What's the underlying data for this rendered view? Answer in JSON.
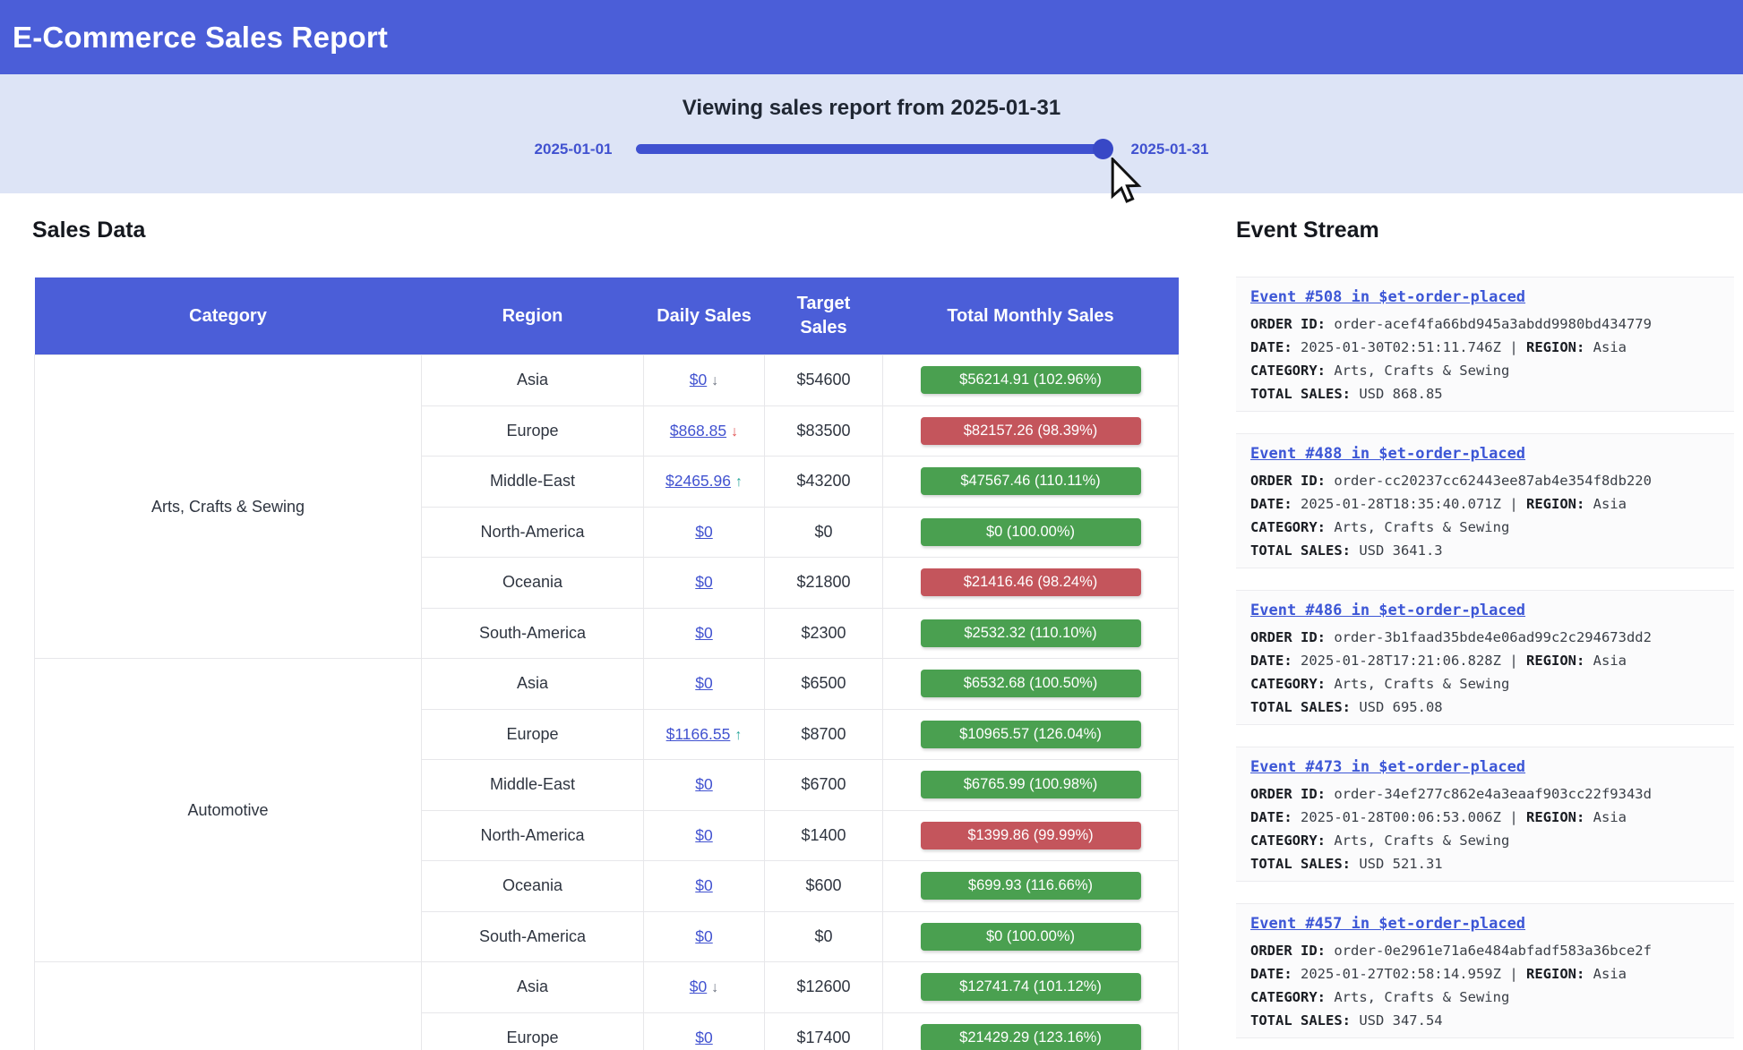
{
  "header": {
    "title": "E-Commerce Sales Report"
  },
  "slider": {
    "title": "Viewing sales report from 2025-01-31",
    "min_label": "2025-01-01",
    "max_label": "2025-01-31",
    "value": "2025-01-31",
    "accent_color": "#3f51d0"
  },
  "sales": {
    "heading": "Sales Data",
    "columns": [
      "Category",
      "Region",
      "Daily Sales",
      "Target Sales",
      "Total Monthly Sales"
    ],
    "groups": [
      {
        "label": "Arts, Crafts & Sewing",
        "span": 6
      },
      {
        "label": "Automotive",
        "span": 6
      },
      {
        "label": "",
        "span": 2
      }
    ],
    "status_colors": {
      "green": "#4aa050",
      "red": "#c4555c"
    },
    "rows": [
      {
        "region": "Asia",
        "daily": "$0",
        "arrow": "↓",
        "arrow_color": "gray",
        "target": "$54600",
        "total": "$56214.91 (102.96%)",
        "status": "green",
        "highlight": true
      },
      {
        "region": "Europe",
        "daily": "$868.85",
        "arrow": "↓",
        "arrow_color": "red",
        "target": "$83500",
        "total": "$82157.26 (98.39%)",
        "status": "red",
        "highlight": false
      },
      {
        "region": "Middle-East",
        "daily": "$2465.96",
        "arrow": "↑",
        "arrow_color": "teal",
        "target": "$43200",
        "total": "$47567.46 (110.11%)",
        "status": "green",
        "highlight": false
      },
      {
        "region": "North-America",
        "daily": "$0",
        "arrow": "",
        "arrow_color": "",
        "target": "$0",
        "total": "$0 (100.00%)",
        "status": "green",
        "highlight": false
      },
      {
        "region": "Oceania",
        "daily": "$0",
        "arrow": "",
        "arrow_color": "",
        "target": "$21800",
        "total": "$21416.46 (98.24%)",
        "status": "red",
        "highlight": false
      },
      {
        "region": "South-America",
        "daily": "$0",
        "arrow": "",
        "arrow_color": "",
        "target": "$2300",
        "total": "$2532.32 (110.10%)",
        "status": "green",
        "highlight": false
      },
      {
        "region": "Asia",
        "daily": "$0",
        "arrow": "",
        "arrow_color": "",
        "target": "$6500",
        "total": "$6532.68 (100.50%)",
        "status": "green",
        "highlight": false
      },
      {
        "region": "Europe",
        "daily": "$1166.55",
        "arrow": "↑",
        "arrow_color": "teal",
        "target": "$8700",
        "total": "$10965.57 (126.04%)",
        "status": "green",
        "highlight": false
      },
      {
        "region": "Middle-East",
        "daily": "$0",
        "arrow": "",
        "arrow_color": "",
        "target": "$6700",
        "total": "$6765.99 (100.98%)",
        "status": "green",
        "highlight": false
      },
      {
        "region": "North-America",
        "daily": "$0",
        "arrow": "",
        "arrow_color": "",
        "target": "$1400",
        "total": "$1399.86 (99.99%)",
        "status": "red",
        "highlight": false
      },
      {
        "region": "Oceania",
        "daily": "$0",
        "arrow": "",
        "arrow_color": "",
        "target": "$600",
        "total": "$699.93 (116.66%)",
        "status": "green",
        "highlight": false
      },
      {
        "region": "South-America",
        "daily": "$0",
        "arrow": "",
        "arrow_color": "",
        "target": "$0",
        "total": "$0 (100.00%)",
        "status": "green",
        "highlight": false
      },
      {
        "region": "Asia",
        "daily": "$0",
        "arrow": "↓",
        "arrow_color": "gray",
        "target": "$12600",
        "total": "$12741.74 (101.12%)",
        "status": "green",
        "highlight": false
      },
      {
        "region": "Europe",
        "daily": "$0",
        "arrow": "",
        "arrow_color": "",
        "target": "$17400",
        "total": "$21429.29 (123.16%)",
        "status": "green",
        "highlight": false
      }
    ]
  },
  "events": {
    "heading": "Event Stream",
    "labels": {
      "order_id": "ORDER ID:",
      "date": "DATE:",
      "region": "REGION:",
      "category": "CATEGORY:",
      "total": "TOTAL SALES:",
      "pipe": "|"
    },
    "items": [
      {
        "title": "Event #508 in $et-order-placed",
        "order_id": "order-acef4fa66bd945a3abdd9980bd434779",
        "date": "2025-01-30T02:51:11.746Z",
        "region": "Asia",
        "category": "Arts, Crafts & Sewing",
        "total_sales": "USD 868.85"
      },
      {
        "title": "Event #488 in $et-order-placed",
        "order_id": "order-cc20237cc62443ee87ab4e354f8db220",
        "date": "2025-01-28T18:35:40.071Z",
        "region": "Asia",
        "category": "Arts, Crafts & Sewing",
        "total_sales": "USD 3641.3"
      },
      {
        "title": "Event #486 in $et-order-placed",
        "order_id": "order-3b1faad35bde4e06ad99c2c294673dd2",
        "date": "2025-01-28T17:21:06.828Z",
        "region": "Asia",
        "category": "Arts, Crafts & Sewing",
        "total_sales": "USD 695.08"
      },
      {
        "title": "Event #473 in $et-order-placed",
        "order_id": "order-34ef277c862e4a3eaaf903cc22f9343d",
        "date": "2025-01-28T00:06:53.006Z",
        "region": "Asia",
        "category": "Arts, Crafts & Sewing",
        "total_sales": "USD 521.31"
      },
      {
        "title": "Event #457 in $et-order-placed",
        "order_id": "order-0e2961e71a6e484abfadf583a36bce2f",
        "date": "2025-01-27T02:58:14.959Z",
        "region": "Asia",
        "category": "Arts, Crafts & Sewing",
        "total_sales": "USD 347.54"
      }
    ]
  }
}
